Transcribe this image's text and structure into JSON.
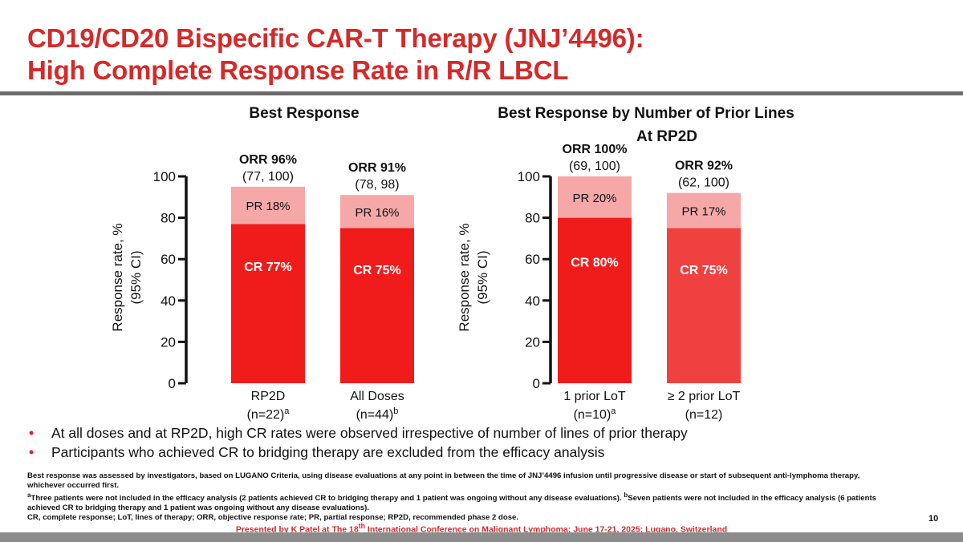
{
  "slide": {
    "title_line1": "CD19/CD20 Bispecific CAR-T Therapy (JNJ’4496):",
    "title_line2": "High Complete Response Rate in R/R LBCL",
    "page_number": "10"
  },
  "colors": {
    "title": "#d42a2a",
    "cr": "#f01c1c",
    "cr_alt": "#ef4240",
    "pr": "#f6a8a8",
    "axis": "#111111",
    "divider": "#6b6b6b"
  },
  "bullets": [
    "At all doses and at RP2D, high CR rates were observed irrespective of number of lines of prior therapy",
    "Participants who achieved CR to bridging therapy are excluded from the efficacy analysis"
  ],
  "footnotes": {
    "line1": "Best response was assessed by investigators, based on LUGANO Criteria, using disease evaluations at any point in between the time of JNJ’4496 infusion until progressive disease or start of subsequent anti-lymphoma therapy, whichever occurred first.",
    "line2_sup": "a",
    "line2": "Three patients were not included in the efficacy analysis (2 patients achieved CR to bridging therapy and 1 patient was ongoing without any disease evaluations). ",
    "line2b_sup": "b",
    "line2b": "Seven patients were not included in the efficacy analysis (6 patients achieved CR to bridging therapy and 1 patient was ongoing without any disease evaluations).",
    "line3": "CR, complete response; LoT, lines of therapy; ORR, objective response rate; PR, partial response; RP2D, recommended phase 2 dose."
  },
  "presented": {
    "pre": "Presented by K Patel at The 18",
    "sup": "th",
    "post": " International Conference  on Malignant Lymphoma; June 17-21, 2025; Lugano, Switzerland"
  },
  "chart_data": [
    {
      "type": "bar",
      "stacked": true,
      "title": "Best Response",
      "title_line2": "",
      "ylabel_line1": "Response rate, %",
      "ylabel_line2": "(95% CI)",
      "ylim": [
        0,
        100
      ],
      "yticks": [
        "0",
        "20",
        "40",
        "60",
        "80",
        "100"
      ],
      "categories": [
        {
          "label": "RP2D",
          "n": "(n=22)",
          "sup": "a"
        },
        {
          "label": "All Doses",
          "n": "(n=44)",
          "sup": "b"
        }
      ],
      "series": [
        {
          "name": "CR",
          "values": [
            77,
            75
          ],
          "labels": [
            "CR 77%",
            "CR 75%"
          ]
        },
        {
          "name": "PR",
          "values": [
            18,
            16
          ],
          "labels": [
            "PR 18%",
            "PR 16%"
          ]
        }
      ],
      "orr": [
        {
          "label": "ORR 96%",
          "ci": "(77, 100)"
        },
        {
          "label": "ORR 91%",
          "ci": "(78, 98)"
        }
      ]
    },
    {
      "type": "bar",
      "stacked": true,
      "title": "Best Response by Number of Prior Lines",
      "title_line2": "At RP2D",
      "ylabel_line1": "Response rate, %",
      "ylabel_line2": "(95% CI)",
      "ylim": [
        0,
        100
      ],
      "yticks": [
        "0",
        "20",
        "40",
        "60",
        "80",
        "100"
      ],
      "categories": [
        {
          "label": "1 prior LoT",
          "n": "(n=10)",
          "sup": "a"
        },
        {
          "label": "≥ 2 prior LoT",
          "n": "(n=12)",
          "sup": ""
        }
      ],
      "series": [
        {
          "name": "CR",
          "values": [
            80,
            75
          ],
          "labels": [
            "CR 80%",
            "CR 75%"
          ]
        },
        {
          "name": "PR",
          "values": [
            20,
            17
          ],
          "labels": [
            "PR 20%",
            "PR 17%"
          ]
        }
      ],
      "orr": [
        {
          "label": "ORR 100%",
          "ci": "(69, 100)"
        },
        {
          "label": "ORR 92%",
          "ci": "(62, 100)"
        }
      ]
    }
  ]
}
